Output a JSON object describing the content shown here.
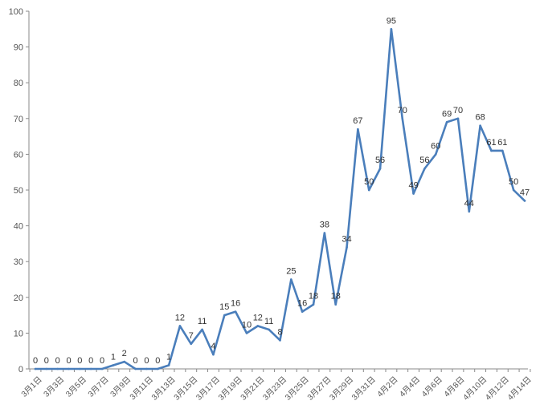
{
  "chart_data": {
    "type": "line",
    "title": "",
    "xlabel": "",
    "ylabel": "",
    "ylim": [
      0,
      100
    ],
    "yticks": [
      0,
      10,
      20,
      30,
      40,
      50,
      60,
      70,
      80,
      90,
      100
    ],
    "grid": false,
    "legend": "none",
    "line_color": "#4A7EBB",
    "x": [
      "3月1日",
      "3月2日",
      "3月3日",
      "3月4日",
      "3月5日",
      "3月6日",
      "3月7日",
      "3月8日",
      "3月9日",
      "3月10日",
      "3月11日",
      "3月12日",
      "3月13日",
      "3月14日",
      "3月15日",
      "3月16日",
      "3月17日",
      "3月18日",
      "3月19日",
      "3月20日",
      "3月21日",
      "3月22日",
      "3月23日",
      "3月24日",
      "3月25日",
      "3月26日",
      "3月27日",
      "3月28日",
      "3月29日",
      "3月30日",
      "3月31日",
      "4月1日",
      "4月2日",
      "4月3日",
      "4月4日",
      "4月5日",
      "4月6日",
      "4月7日",
      "4月8日",
      "4月9日",
      "4月10日",
      "4月11日",
      "4月12日",
      "4月13日",
      "4月14日"
    ],
    "x_tick_labels": [
      "3月1日",
      "3月3日",
      "3月5日",
      "3月7日",
      "3月9日",
      "3月11日",
      "3月13日",
      "3月15日",
      "3月17日",
      "3月19日",
      "3月21日",
      "3月23日",
      "3月25日",
      "3月27日",
      "3月29日",
      "3月31日",
      "4月2日",
      "4月4日",
      "4月6日",
      "4月8日",
      "4月10日",
      "4月12日",
      "4月14日"
    ],
    "series": [
      {
        "values": [
          0,
          0,
          0,
          0,
          0,
          0,
          0,
          1,
          2,
          0,
          0,
          0,
          1,
          12,
          7,
          11,
          4,
          15,
          16,
          10,
          12,
          11,
          8,
          25,
          16,
          18,
          38,
          18,
          34,
          67,
          50,
          56,
          95,
          70,
          49,
          56,
          60,
          69,
          70,
          44,
          68,
          61,
          61,
          50,
          47
        ]
      }
    ]
  }
}
